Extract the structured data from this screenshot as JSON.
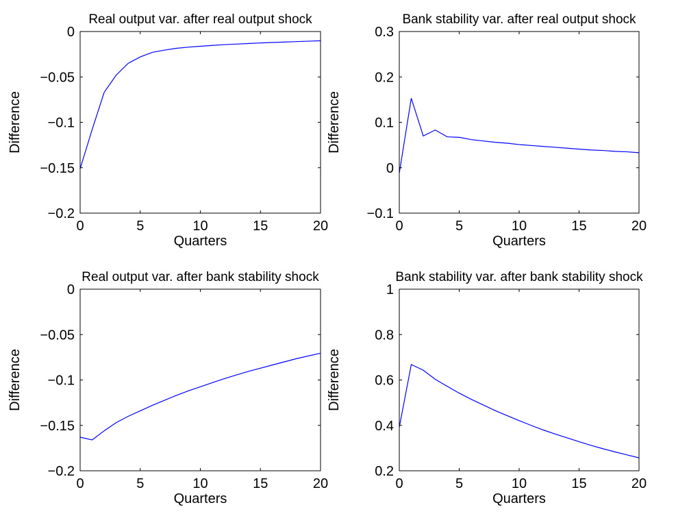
{
  "chart_data": [
    {
      "type": "line",
      "title": "Real output var. after real output shock",
      "xlabel": "Quarters",
      "ylabel": "Difference",
      "xlim": [
        0,
        20
      ],
      "ylim": [
        -0.2,
        0
      ],
      "xticks": [
        0,
        5,
        10,
        15,
        20
      ],
      "yticks": [
        -0.2,
        -0.15,
        -0.1,
        -0.05,
        0
      ],
      "xtick_labels": [
        "0",
        "5",
        "10",
        "15",
        "20"
      ],
      "ytick_labels": [
        "−0.2",
        "−0.15",
        "−0.1",
        "−0.05",
        "0"
      ],
      "grid": false,
      "series": [
        {
          "color": "#0000ff",
          "x": [
            0,
            1,
            2,
            3,
            4,
            5,
            6,
            7,
            8,
            9,
            10,
            11,
            12,
            13,
            14,
            15,
            16,
            17,
            18,
            19,
            20
          ],
          "y": [
            -0.151,
            -0.108,
            -0.067,
            -0.048,
            -0.035,
            -0.028,
            -0.023,
            -0.0205,
            -0.0185,
            -0.0172,
            -0.0162,
            -0.0153,
            -0.0145,
            -0.0138,
            -0.0132,
            -0.0126,
            -0.0121,
            -0.0116,
            -0.0111,
            -0.0106,
            -0.0102
          ]
        }
      ]
    },
    {
      "type": "line",
      "title": "Bank stability var. after real output shock",
      "xlabel": "Quarters",
      "ylabel": "Difference",
      "xlim": [
        0,
        20
      ],
      "ylim": [
        -0.1,
        0.3
      ],
      "xticks": [
        0,
        5,
        10,
        15,
        20
      ],
      "yticks": [
        -0.1,
        0,
        0.1,
        0.2,
        0.3
      ],
      "xtick_labels": [
        "0",
        "5",
        "10",
        "15",
        "20"
      ],
      "ytick_labels": [
        "−0.1",
        "0",
        "0.1",
        "0.2",
        "0.3"
      ],
      "grid": false,
      "series": [
        {
          "color": "#0000ff",
          "x": [
            0,
            1,
            2,
            3,
            4,
            5,
            6,
            7,
            8,
            9,
            10,
            11,
            12,
            13,
            14,
            15,
            16,
            17,
            18,
            19,
            20
          ],
          "y": [
            -0.012,
            0.153,
            0.07,
            0.083,
            0.068,
            0.067,
            0.062,
            0.059,
            0.056,
            0.054,
            0.051,
            0.049,
            0.047,
            0.045,
            0.043,
            0.041,
            0.039,
            0.038,
            0.036,
            0.035,
            0.033
          ]
        }
      ]
    },
    {
      "type": "line",
      "title": "Real output var. after bank stability shock",
      "xlabel": "Quarters",
      "ylabel": "Difference",
      "xlim": [
        0,
        20
      ],
      "ylim": [
        -0.2,
        0
      ],
      "xticks": [
        0,
        5,
        10,
        15,
        20
      ],
      "yticks": [
        -0.2,
        -0.15,
        -0.1,
        -0.05,
        0
      ],
      "xtick_labels": [
        "0",
        "5",
        "10",
        "15",
        "20"
      ],
      "ytick_labels": [
        "−0.2",
        "−0.15",
        "−0.1",
        "−0.05",
        "0"
      ],
      "grid": false,
      "series": [
        {
          "color": "#0000ff",
          "x": [
            0,
            1,
            2,
            3,
            4,
            5,
            6,
            7,
            8,
            9,
            10,
            11,
            12,
            13,
            14,
            15,
            16,
            17,
            18,
            19,
            20
          ],
          "y": [
            -0.163,
            -0.166,
            -0.156,
            -0.147,
            -0.14,
            -0.134,
            -0.128,
            -0.1225,
            -0.117,
            -0.112,
            -0.1075,
            -0.103,
            -0.0985,
            -0.0945,
            -0.0905,
            -0.087,
            -0.0835,
            -0.08,
            -0.0765,
            -0.0735,
            -0.0705
          ]
        }
      ]
    },
    {
      "type": "line",
      "title": "Bank stability var. after bank stability shock",
      "xlabel": "Quarters",
      "ylabel": "Difference",
      "xlim": [
        0,
        20
      ],
      "ylim": [
        0.2,
        1
      ],
      "xticks": [
        0,
        5,
        10,
        15,
        20
      ],
      "yticks": [
        0.2,
        0.4,
        0.6,
        0.8,
        1
      ],
      "xtick_labels": [
        "0",
        "5",
        "10",
        "15",
        "20"
      ],
      "ytick_labels": [
        "0.2",
        "0.4",
        "0.6",
        "0.8",
        "1"
      ],
      "grid": false,
      "series": [
        {
          "color": "#0000ff",
          "x": [
            0,
            1,
            2,
            3,
            4,
            5,
            6,
            7,
            8,
            9,
            10,
            11,
            12,
            13,
            14,
            15,
            16,
            17,
            18,
            19,
            20
          ],
          "y": [
            0.392,
            0.668,
            0.643,
            0.603,
            0.572,
            0.542,
            0.515,
            0.49,
            0.465,
            0.443,
            0.421,
            0.4,
            0.38,
            0.362,
            0.345,
            0.328,
            0.312,
            0.297,
            0.283,
            0.27,
            0.257
          ]
        }
      ]
    }
  ]
}
